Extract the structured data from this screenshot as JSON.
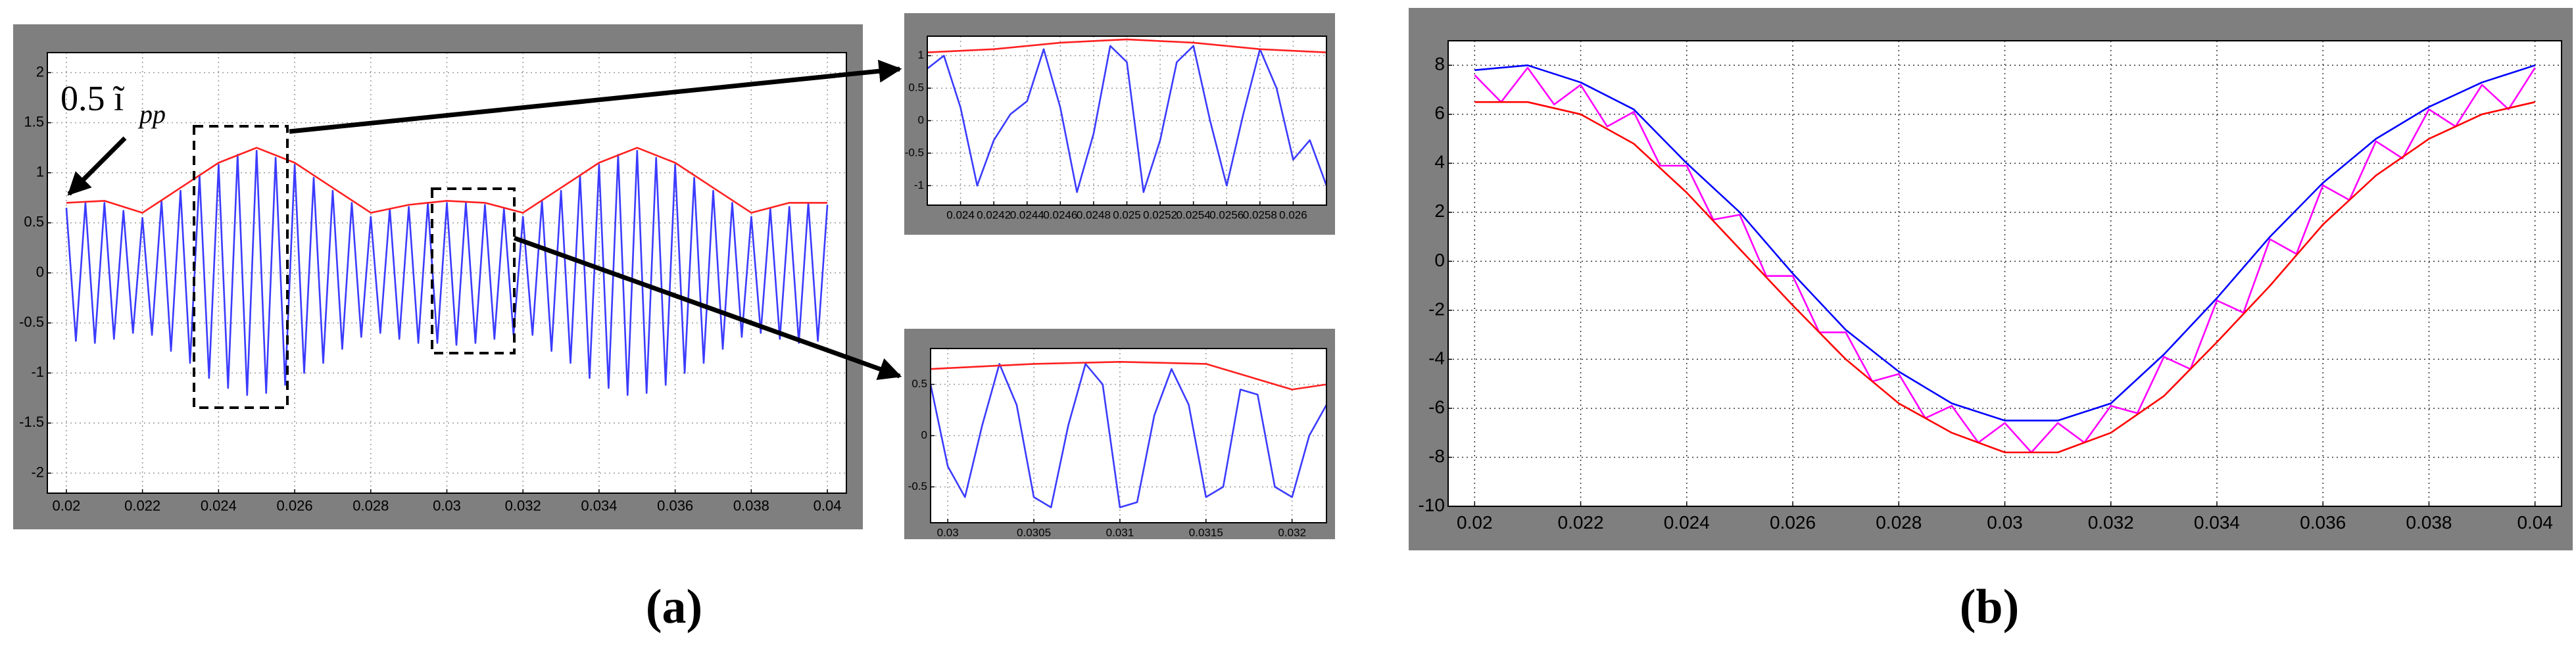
{
  "panel_labels": [
    "(a)",
    "(b)"
  ],
  "chart_data": [
    {
      "type": "line",
      "grid": true,
      "annotation": {
        "text": "0.5 ĩ",
        "subscript": "pp"
      },
      "xlim": [
        0.0195,
        0.0405
      ],
      "xticks": [
        0.02,
        0.022,
        0.024,
        0.026,
        0.028,
        0.03,
        0.032,
        0.034,
        0.036,
        0.038,
        0.04
      ],
      "ylim": [
        -2.2,
        2.2
      ],
      "yticks": [
        -2,
        -1.5,
        -1,
        -0.5,
        0,
        0.5,
        1,
        1.5,
        2
      ],
      "series": [
        {
          "color": "#3b3bff",
          "x": [
            0.02,
            0.02025,
            0.0205,
            0.02075,
            0.021,
            0.02125,
            0.0215,
            0.02175,
            0.022,
            0.02225,
            0.0225,
            0.02275,
            0.023,
            0.02325,
            0.0235,
            0.02375,
            0.024,
            0.02425,
            0.0245,
            0.02475,
            0.025,
            0.02525,
            0.0255,
            0.02575,
            0.026,
            0.02625,
            0.0265,
            0.02675,
            0.027,
            0.02725,
            0.0275,
            0.02775,
            0.028,
            0.02825,
            0.0285,
            0.02875,
            0.029,
            0.02925,
            0.0295,
            0.02975,
            0.03,
            0.03025,
            0.0305,
            0.03075,
            0.031,
            0.03125,
            0.0315,
            0.03175,
            0.032,
            0.03225,
            0.0325,
            0.03275,
            0.033,
            0.03325,
            0.0335,
            0.03375,
            0.034,
            0.03425,
            0.0345,
            0.03475,
            0.035,
            0.03525,
            0.0355,
            0.03575,
            0.036,
            0.03625,
            0.0365,
            0.03675,
            0.037,
            0.03725,
            0.0375,
            0.03775,
            0.038,
            0.03825,
            0.0385,
            0.03875,
            0.039,
            0.03925,
            0.0395,
            0.03975,
            0.04
          ],
          "values": [
            0.65,
            -0.68,
            0.7,
            -0.7,
            0.7,
            -0.66,
            0.62,
            -0.6,
            0.55,
            -0.62,
            0.72,
            -0.78,
            0.82,
            -0.9,
            0.97,
            -1.05,
            1.08,
            -1.15,
            1.18,
            -1.22,
            1.22,
            -1.2,
            1.15,
            -1.12,
            1.08,
            -1.0,
            0.95,
            -0.9,
            0.82,
            -0.76,
            0.7,
            -0.64,
            0.56,
            -0.6,
            0.64,
            -0.66,
            0.66,
            -0.7,
            0.7,
            -0.7,
            0.7,
            -0.72,
            0.7,
            -0.7,
            0.68,
            -0.66,
            0.64,
            -0.62,
            0.56,
            -0.62,
            0.72,
            -0.78,
            0.82,
            -0.9,
            0.97,
            -1.05,
            1.08,
            -1.15,
            1.18,
            -1.22,
            1.22,
            -1.2,
            1.15,
            -1.12,
            1.08,
            -1.0,
            0.95,
            -0.9,
            0.82,
            -0.76,
            0.7,
            -0.64,
            0.56,
            -0.6,
            0.64,
            -0.66,
            0.66,
            -0.7,
            0.7,
            -0.68,
            0.68
          ]
        },
        {
          "color": "#ff2020",
          "x": [
            0.02,
            0.021,
            0.022,
            0.023,
            0.024,
            0.025,
            0.026,
            0.027,
            0.028,
            0.029,
            0.03,
            0.031,
            0.032,
            0.033,
            0.034,
            0.035,
            0.036,
            0.037,
            0.038,
            0.039,
            0.04
          ],
          "values": [
            0.7,
            0.72,
            0.6,
            0.85,
            1.1,
            1.25,
            1.1,
            0.85,
            0.6,
            0.68,
            0.72,
            0.7,
            0.6,
            0.85,
            1.1,
            1.25,
            1.1,
            0.85,
            0.6,
            0.7,
            0.7
          ]
        }
      ]
    },
    {
      "type": "line",
      "grid": true,
      "xlim": [
        0.0238,
        0.0262
      ],
      "xticks": [
        0.024,
        0.0242,
        0.0244,
        0.0246,
        0.0248,
        0.025,
        0.0252,
        0.0254,
        0.0256,
        0.0258,
        0.026
      ],
      "ylim": [
        -1.3,
        1.3
      ],
      "yticks": [
        -1,
        -0.5,
        0,
        0.5,
        1
      ],
      "series": [
        {
          "color": "#3b3bff",
          "x": [
            0.0238,
            0.0239,
            0.024,
            0.0241,
            0.0242,
            0.0243,
            0.0244,
            0.0245,
            0.0246,
            0.0247,
            0.0248,
            0.0249,
            0.025,
            0.0251,
            0.0252,
            0.0253,
            0.0254,
            0.0255,
            0.0256,
            0.0257,
            0.0258,
            0.0259,
            0.026,
            0.0261,
            0.0262
          ],
          "values": [
            0.8,
            1.0,
            0.2,
            -1.0,
            -0.3,
            0.1,
            0.3,
            1.1,
            0.2,
            -1.1,
            -0.2,
            1.15,
            0.9,
            -1.1,
            -0.3,
            0.9,
            1.15,
            0.0,
            -1.0,
            0.1,
            1.1,
            0.5,
            -0.6,
            -0.3,
            -1.0
          ]
        },
        {
          "color": "#ff2020",
          "x": [
            0.0238,
            0.0242,
            0.0246,
            0.025,
            0.0254,
            0.0258,
            0.0262
          ],
          "values": [
            1.05,
            1.1,
            1.2,
            1.25,
            1.2,
            1.1,
            1.05
          ]
        }
      ]
    },
    {
      "type": "line",
      "grid": true,
      "xlim": [
        0.0299,
        0.0322
      ],
      "xticks": [
        0.03,
        0.0305,
        0.031,
        0.0315,
        0.032
      ],
      "ylim": [
        -0.85,
        0.85
      ],
      "yticks": [
        -0.5,
        0,
        0.5
      ],
      "series": [
        {
          "color": "#3b3bff",
          "x": [
            0.0299,
            0.03,
            0.0301,
            0.0302,
            0.0303,
            0.0304,
            0.0305,
            0.0306,
            0.0307,
            0.0308,
            0.0309,
            0.031,
            0.0311,
            0.0312,
            0.0313,
            0.0314,
            0.0315,
            0.0316,
            0.0317,
            0.0318,
            0.0319,
            0.032,
            0.0321,
            0.0322
          ],
          "values": [
            0.5,
            -0.3,
            -0.6,
            0.1,
            0.7,
            0.3,
            -0.6,
            -0.7,
            0.1,
            0.7,
            0.5,
            -0.7,
            -0.65,
            0.2,
            0.65,
            0.3,
            -0.6,
            -0.5,
            0.45,
            0.4,
            -0.5,
            -0.6,
            0.0,
            0.3
          ]
        },
        {
          "color": "#ff2020",
          "x": [
            0.0299,
            0.0305,
            0.031,
            0.0315,
            0.032,
            0.0322
          ],
          "values": [
            0.65,
            0.7,
            0.72,
            0.7,
            0.45,
            0.5
          ]
        }
      ]
    },
    {
      "type": "line",
      "grid": true,
      "xlim": [
        0.0195,
        0.0405
      ],
      "xticks": [
        0.02,
        0.022,
        0.024,
        0.026,
        0.028,
        0.03,
        0.032,
        0.034,
        0.036,
        0.038,
        0.04
      ],
      "ylim": [
        -10,
        9
      ],
      "yticks": [
        -10,
        -8,
        -6,
        -4,
        -2,
        0,
        2,
        4,
        6,
        8
      ],
      "series": [
        {
          "color": "#ff00ff",
          "x": [
            0.02,
            0.0205,
            0.021,
            0.0215,
            0.022,
            0.0225,
            0.023,
            0.0235,
            0.024,
            0.0245,
            0.025,
            0.0255,
            0.026,
            0.0265,
            0.027,
            0.0275,
            0.028,
            0.0285,
            0.029,
            0.0295,
            0.03,
            0.0305,
            0.031,
            0.0315,
            0.032,
            0.0325,
            0.033,
            0.0335,
            0.034,
            0.0345,
            0.035,
            0.0355,
            0.036,
            0.0365,
            0.037,
            0.0375,
            0.038,
            0.0385,
            0.039,
            0.0395,
            0.04
          ],
          "values": [
            7.6,
            6.5,
            7.9,
            6.4,
            7.2,
            5.5,
            6.1,
            3.9,
            3.9,
            1.7,
            1.9,
            -0.6,
            -0.6,
            -2.9,
            -2.9,
            -4.9,
            -4.6,
            -6.4,
            -5.9,
            -7.4,
            -6.6,
            -7.8,
            -6.6,
            -7.4,
            -5.9,
            -6.2,
            -3.9,
            -4.4,
            -1.6,
            -2.1,
            0.9,
            0.3,
            3.1,
            2.5,
            4.9,
            4.2,
            6.2,
            5.5,
            7.2,
            6.2,
            7.9
          ]
        },
        {
          "color": "#0000ff",
          "x": [
            0.02,
            0.021,
            0.022,
            0.023,
            0.024,
            0.025,
            0.026,
            0.027,
            0.028,
            0.029,
            0.03,
            0.031,
            0.032,
            0.033,
            0.034,
            0.035,
            0.036,
            0.037,
            0.038,
            0.039,
            0.04
          ],
          "values": [
            7.8,
            8.0,
            7.3,
            6.2,
            4.0,
            2.0,
            -0.5,
            -2.8,
            -4.5,
            -5.8,
            -6.5,
            -6.5,
            -5.8,
            -3.8,
            -1.5,
            1.0,
            3.2,
            5.0,
            6.3,
            7.3,
            8.0
          ]
        },
        {
          "color": "#ff0000",
          "x": [
            0.02,
            0.021,
            0.022,
            0.023,
            0.024,
            0.025,
            0.026,
            0.027,
            0.028,
            0.029,
            0.03,
            0.031,
            0.032,
            0.033,
            0.034,
            0.035,
            0.036,
            0.037,
            0.038,
            0.039,
            0.04
          ],
          "values": [
            6.5,
            6.5,
            6.0,
            4.8,
            2.8,
            0.5,
            -1.8,
            -4.0,
            -5.8,
            -7.0,
            -7.8,
            -7.8,
            -7.0,
            -5.5,
            -3.3,
            -1.0,
            1.5,
            3.5,
            5.0,
            6.0,
            6.5
          ]
        }
      ]
    }
  ]
}
